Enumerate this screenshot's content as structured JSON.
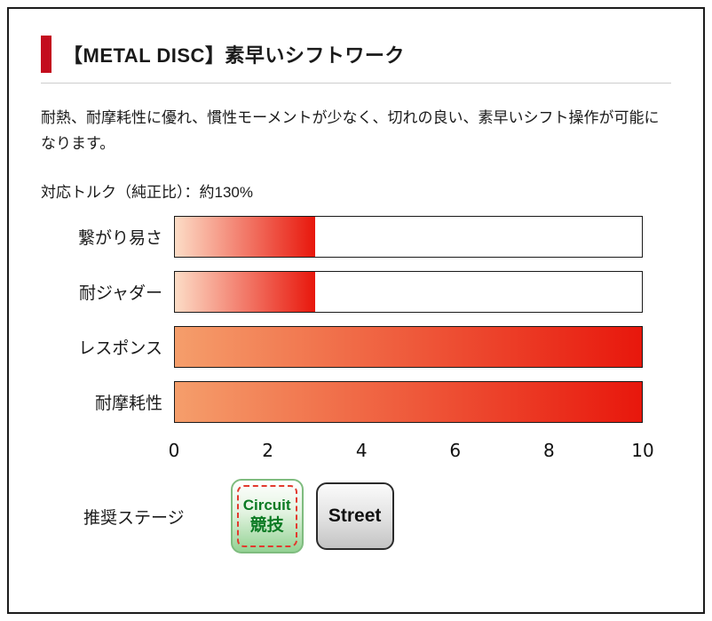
{
  "header": {
    "title": "【METAL DISC】素早いシフトワーク",
    "accent_color": "#c30d1e"
  },
  "body": {
    "description": "耐熱、耐摩耗性に優れ、慣性モーメントが少なく、切れの良い、素早いシフト操作が可能になります。",
    "torque_note": "対応トルク（純正比）：約130%"
  },
  "chart_data": {
    "type": "bar",
    "orientation": "horizontal",
    "title": "",
    "categories": [
      "繋がり易さ",
      "耐ジャダー",
      "レスポンス",
      "耐摩耗性"
    ],
    "values": [
      3,
      3,
      10,
      10
    ],
    "xlim": [
      0,
      10
    ],
    "x_ticks": [
      "0",
      "2",
      "4",
      "6",
      "8",
      "10"
    ],
    "grid": false,
    "legend": false,
    "colors": {
      "gradient_start_partial": "#fcdcc6",
      "gradient_start_full": "#f59e6b",
      "gradient_end": "#e8170c",
      "track_border": "#1a1a1a",
      "track_background": "#ffffff"
    }
  },
  "stage": {
    "label": "推奨ステージ",
    "circuit": {
      "line1": "Circuit",
      "line2": "競技"
    },
    "street": {
      "label": "Street"
    }
  }
}
